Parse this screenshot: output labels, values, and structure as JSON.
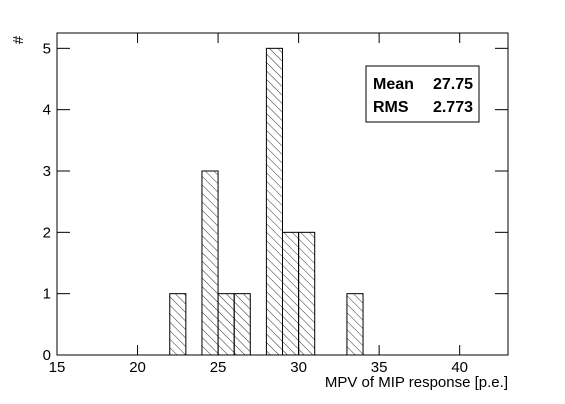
{
  "chart_data": {
    "type": "histogram",
    "x_label": "MPV of MIP response [p.e.]",
    "y_label": "#",
    "bins": [
      22,
      23,
      24,
      25,
      26,
      27,
      28,
      29,
      30,
      31,
      32,
      33,
      34
    ],
    "values": [
      1,
      0,
      3,
      1,
      1,
      0,
      5,
      2,
      2,
      0,
      0,
      1
    ],
    "color": "#000000",
    "xlim": [
      15,
      43
    ],
    "xticks": [
      15,
      20,
      25,
      30,
      35,
      40
    ],
    "ylim": [
      0,
      5.25
    ],
    "yticks": [
      0,
      1,
      2,
      3,
      4,
      5
    ],
    "stats": {
      "labels": [
        "Mean",
        "RMS"
      ],
      "values": [
        27.75,
        2.773
      ]
    }
  }
}
